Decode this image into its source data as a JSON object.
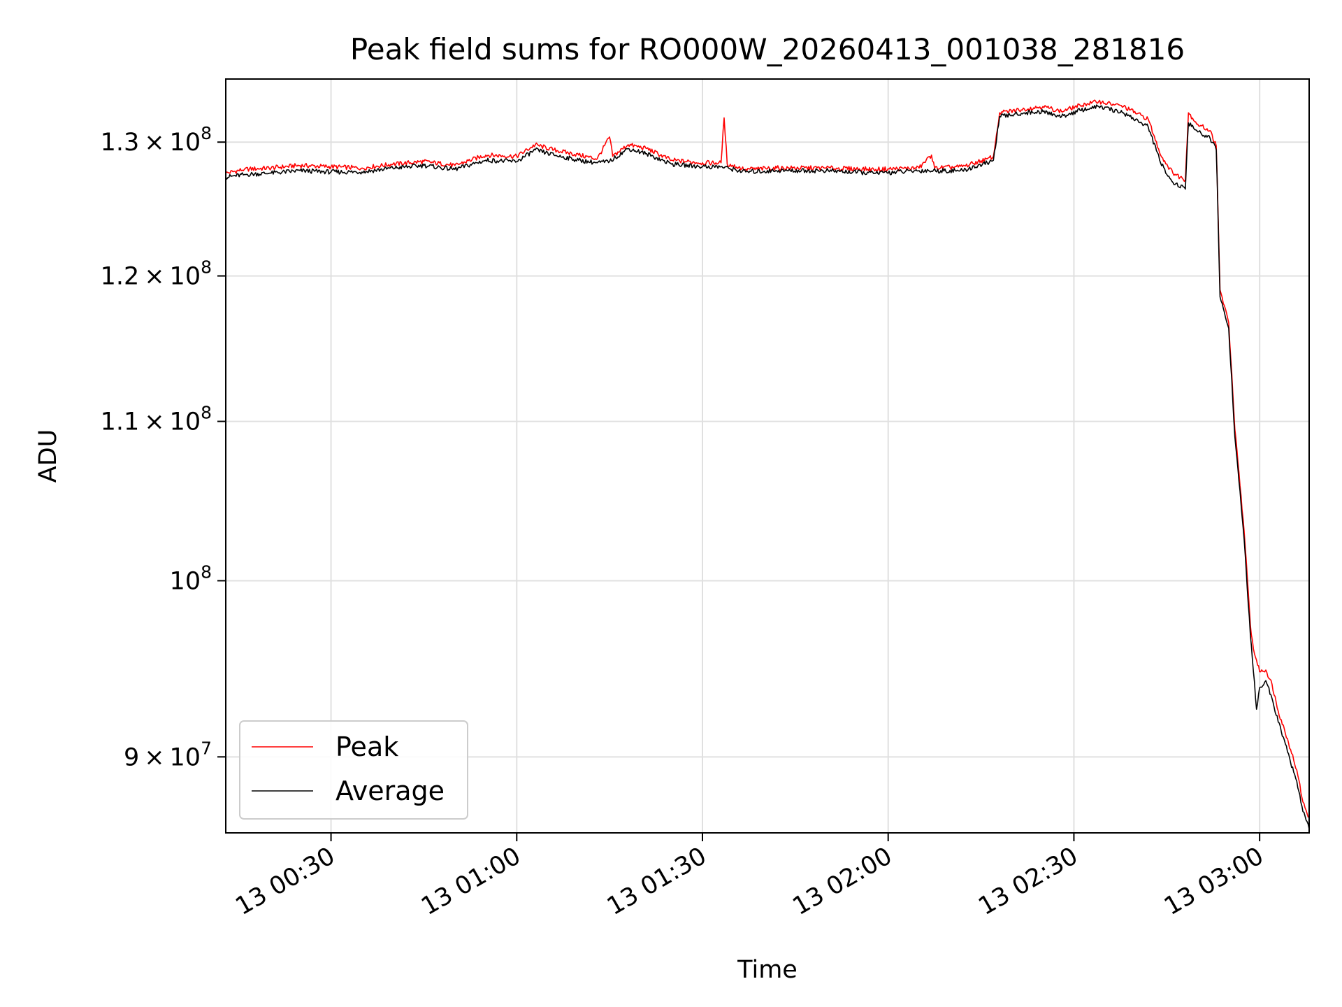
{
  "chart_data": {
    "type": "line",
    "title": "Peak field sums for RO000W_20260413_001038_281816",
    "xlabel": "Time",
    "ylabel": "ADU",
    "x_type": "time",
    "xlim": [
      "2026-04-13 00:13",
      "2026-04-13 03:08"
    ],
    "ylim": [
      86000000,
      135000000
    ],
    "yscale": "log",
    "grid": true,
    "legend_position": "lower-left",
    "x_ticks": [
      "13 00:30",
      "13 01:00",
      "13 01:30",
      "13 02:00",
      "13 02:30",
      "13 03:00"
    ],
    "y_ticks": [
      {
        "value": 90000000,
        "mantissa": "9",
        "base": "10",
        "exp": "7"
      },
      {
        "value": 100000000,
        "mantissa": "",
        "base": "10",
        "exp": "8"
      },
      {
        "value": 110000000,
        "mantissa": "1.1",
        "base": "10",
        "exp": "8"
      },
      {
        "value": 120000000,
        "mantissa": "1.2",
        "base": "10",
        "exp": "8"
      },
      {
        "value": 130000000,
        "mantissa": "1.3",
        "base": "10",
        "exp": "8"
      }
    ],
    "series": [
      {
        "name": "Peak",
        "color": "#ff0000",
        "points": [
          [
            "2026-04-13 00:13",
            127600000
          ],
          [
            "2026-04-13 00:16",
            127900000
          ],
          [
            "2026-04-13 00:20",
            128000000
          ],
          [
            "2026-04-13 00:25",
            128200000
          ],
          [
            "2026-04-13 00:30",
            128100000
          ],
          [
            "2026-04-13 00:35",
            128000000
          ],
          [
            "2026-04-13 00:40",
            128300000
          ],
          [
            "2026-04-13 00:45",
            128500000
          ],
          [
            "2026-04-13 00:50",
            128200000
          ],
          [
            "2026-04-13 00:55",
            129000000
          ],
          [
            "2026-04-13 01:00",
            128900000
          ],
          [
            "2026-04-13 01:03",
            129800000
          ],
          [
            "2026-04-13 01:06",
            129400000
          ],
          [
            "2026-04-13 01:10",
            129000000
          ],
          [
            "2026-04-13 01:13",
            128700000
          ],
          [
            "2026-04-13 01:15",
            130400000
          ],
          [
            "2026-04-13 01:15.5",
            128900000
          ],
          [
            "2026-04-13 01:18",
            129800000
          ],
          [
            "2026-04-13 01:21",
            129500000
          ],
          [
            "2026-04-13 01:25",
            128600000
          ],
          [
            "2026-04-13 01:30",
            128400000
          ],
          [
            "2026-04-13 01:33",
            128400000
          ],
          [
            "2026-04-13 01:33.5",
            131900000
          ],
          [
            "2026-04-13 01:34",
            128300000
          ],
          [
            "2026-04-13 01:37",
            127900000
          ],
          [
            "2026-04-13 01:42",
            128000000
          ],
          [
            "2026-04-13 01:50",
            128000000
          ],
          [
            "2026-04-13 01:58",
            127900000
          ],
          [
            "2026-04-13 02:05",
            128000000
          ],
          [
            "2026-04-13 02:07",
            129000000
          ],
          [
            "2026-04-13 02:07.5",
            128000000
          ],
          [
            "2026-04-13 02:12",
            128100000
          ],
          [
            "2026-04-13 02:16",
            128700000
          ],
          [
            "2026-04-13 02:17",
            128900000
          ],
          [
            "2026-04-13 02:18",
            132300000
          ],
          [
            "2026-04-13 02:22",
            132600000
          ],
          [
            "2026-04-13 02:25",
            132800000
          ],
          [
            "2026-04-13 02:28",
            132400000
          ],
          [
            "2026-04-13 02:31",
            132900000
          ],
          [
            "2026-04-13 02:34",
            133200000
          ],
          [
            "2026-04-13 02:38",
            132800000
          ],
          [
            "2026-04-13 02:42",
            131800000
          ],
          [
            "2026-04-13 02:44",
            129000000
          ],
          [
            "2026-04-13 02:46",
            127600000
          ],
          [
            "2026-04-13 02:48",
            127100000
          ],
          [
            "2026-04-13 02:48.5",
            132300000
          ],
          [
            "2026-04-13 02:50",
            131400000
          ],
          [
            "2026-04-13 02:52",
            130900000
          ],
          [
            "2026-04-13 02:53",
            129700000
          ],
          [
            "2026-04-13 02:53.6",
            119000000
          ],
          [
            "2026-04-13 02:55",
            116700000
          ],
          [
            "2026-04-13 02:56",
            109500000
          ],
          [
            "2026-04-13 02:57.5",
            103000000
          ],
          [
            "2026-04-13 02:58.5",
            97400000
          ],
          [
            "2026-04-13 02:59",
            96000000
          ],
          [
            "2026-04-13 03:00",
            94700000
          ],
          [
            "2026-04-13 03:01",
            94800000
          ],
          [
            "2026-04-13 03:02",
            94000000
          ],
          [
            "2026-04-13 03:03",
            92500000
          ],
          [
            "2026-04-13 03:04",
            91500000
          ],
          [
            "2026-04-13 03:05",
            90400000
          ],
          [
            "2026-04-13 03:06",
            89300000
          ],
          [
            "2026-04-13 03:07",
            87600000
          ],
          [
            "2026-04-13 03:08",
            86800000
          ]
        ]
      },
      {
        "name": "Average",
        "color": "#000000",
        "points": [
          [
            "2026-04-13 00:13",
            127300000
          ],
          [
            "2026-04-13 00:16",
            127500000
          ],
          [
            "2026-04-13 00:20",
            127600000
          ],
          [
            "2026-04-13 00:25",
            127800000
          ],
          [
            "2026-04-13 00:30",
            127700000
          ],
          [
            "2026-04-13 00:35",
            127700000
          ],
          [
            "2026-04-13 00:40",
            128000000
          ],
          [
            "2026-04-13 00:45",
            128200000
          ],
          [
            "2026-04-13 00:50",
            127900000
          ],
          [
            "2026-04-13 00:55",
            128600000
          ],
          [
            "2026-04-13 01:00",
            128500000
          ],
          [
            "2026-04-13 01:03",
            129400000
          ],
          [
            "2026-04-13 01:06",
            129000000
          ],
          [
            "2026-04-13 01:10",
            128600000
          ],
          [
            "2026-04-13 01:13",
            128400000
          ],
          [
            "2026-04-13 01:15",
            128500000
          ],
          [
            "2026-04-13 01:18",
            129500000
          ],
          [
            "2026-04-13 01:21",
            129100000
          ],
          [
            "2026-04-13 01:25",
            128300000
          ],
          [
            "2026-04-13 01:30",
            128100000
          ],
          [
            "2026-04-13 01:33",
            128100000
          ],
          [
            "2026-04-13 01:37",
            127700000
          ],
          [
            "2026-04-13 01:42",
            127800000
          ],
          [
            "2026-04-13 01:50",
            127800000
          ],
          [
            "2026-04-13 01:58",
            127600000
          ],
          [
            "2026-04-13 02:05",
            127800000
          ],
          [
            "2026-04-13 02:12",
            127800000
          ],
          [
            "2026-04-13 02:16",
            128400000
          ],
          [
            "2026-04-13 02:17",
            128600000
          ],
          [
            "2026-04-13 02:18",
            132000000
          ],
          [
            "2026-04-13 02:22",
            132300000
          ],
          [
            "2026-04-13 02:25",
            132400000
          ],
          [
            "2026-04-13 02:28",
            132000000
          ],
          [
            "2026-04-13 02:31",
            132500000
          ],
          [
            "2026-04-13 02:34",
            132800000
          ],
          [
            "2026-04-13 02:38",
            132300000
          ],
          [
            "2026-04-13 02:42",
            131200000
          ],
          [
            "2026-04-13 02:44",
            128400000
          ],
          [
            "2026-04-13 02:46",
            126900000
          ],
          [
            "2026-04-13 02:48",
            126400000
          ],
          [
            "2026-04-13 02:48.5",
            131500000
          ],
          [
            "2026-04-13 02:50",
            130800000
          ],
          [
            "2026-04-13 02:52",
            130300000
          ],
          [
            "2026-04-13 02:53",
            129400000
          ],
          [
            "2026-04-13 02:53.6",
            118500000
          ],
          [
            "2026-04-13 02:55",
            116300000
          ],
          [
            "2026-04-13 02:56",
            109000000
          ],
          [
            "2026-04-13 02:57.5",
            102500000
          ],
          [
            "2026-04-13 02:58.5",
            96800000
          ],
          [
            "2026-04-13 02:59.5",
            92600000
          ],
          [
            "2026-04-13 03:00",
            93800000
          ],
          [
            "2026-04-13 03:01",
            94200000
          ],
          [
            "2026-04-13 03:02",
            93200000
          ],
          [
            "2026-04-13 03:03",
            91900000
          ],
          [
            "2026-04-13 03:04",
            90900000
          ],
          [
            "2026-04-13 03:05",
            89700000
          ],
          [
            "2026-04-13 03:06",
            88700000
          ],
          [
            "2026-04-13 03:07",
            87100000
          ],
          [
            "2026-04-13 03:08",
            86200000
          ]
        ]
      }
    ]
  }
}
